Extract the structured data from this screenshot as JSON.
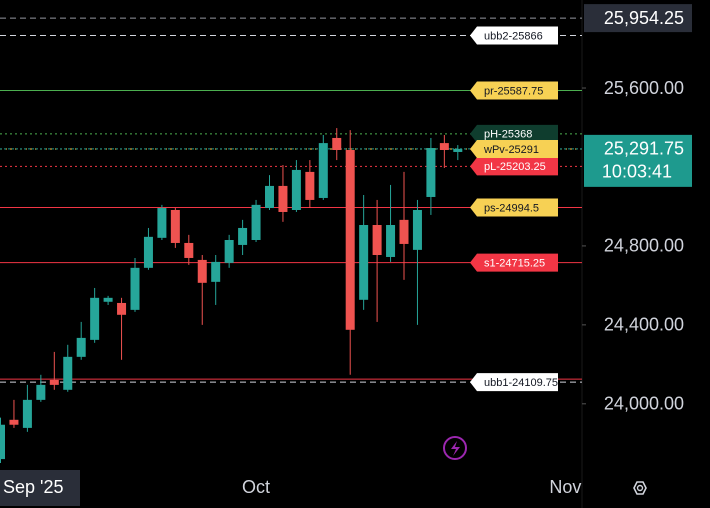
{
  "chart_data": {
    "type": "candlestick",
    "categories": [
      null,
      null,
      "Sep '25",
      null,
      null,
      null,
      null,
      null,
      null,
      null,
      null,
      null,
      null,
      null,
      null,
      null,
      null,
      null,
      null,
      "Oct",
      null,
      null,
      null,
      null,
      null,
      null,
      null,
      null,
      null,
      null,
      null,
      null,
      null,
      null,
      null,
      null,
      null,
      null,
      null,
      null,
      null,
      null,
      "Nov"
    ],
    "open": [
      23720,
      23919,
      23878,
      24020,
      24121,
      24071,
      24238,
      24324,
      24517,
      24511,
      24476,
      24689,
      24841,
      24982,
      24815,
      24729,
      24618,
      24714,
      24805,
      24830,
      24992,
      25104,
      24982,
      25175,
      25043,
      25347,
      25286,
      24527,
      24906,
      24744,
      24932,
      24780,
      25048,
      25321,
      25276,
      null,
      null,
      null,
      null,
      null,
      null,
      null,
      null
    ],
    "high": [
      23930,
      24020,
      24096,
      24147,
      24263,
      24299,
      24415,
      24587,
      24547,
      24537,
      24739,
      24891,
      25008,
      24992,
      24856,
      24754,
      24754,
      24856,
      24932,
      25033,
      25159,
      25210,
      25235,
      25235,
      25362,
      25397,
      25387,
      25058,
      25033,
      25109,
      25175,
      25033,
      25347,
      25362,
      25311,
      null,
      null,
      null,
      null,
      null,
      null,
      null,
      null
    ],
    "low": [
      23700,
      23878,
      23858,
      24010,
      24071,
      24061,
      24223,
      24309,
      24501,
      24223,
      24466,
      24679,
      24830,
      24790,
      24704,
      24400,
      24501,
      24689,
      24754,
      24820,
      24982,
      24922,
      24972,
      24992,
      25033,
      25235,
      24147,
      24476,
      24415,
      24719,
      24628,
      24400,
      24957,
      25195,
      25235,
      null,
      null,
      null,
      null,
      null,
      null,
      null,
      null
    ],
    "close": [
      23894,
      23894,
      24020,
      24096,
      24096,
      24238,
      24334,
      24537,
      24537,
      24451,
      24689,
      24846,
      24992,
      24815,
      24739,
      24613,
      24719,
      24830,
      24891,
      25008,
      25104,
      24972,
      25185,
      25033,
      25321,
      25286,
      24375,
      24906,
      24754,
      24906,
      24810,
      24982,
      25296,
      25286,
      25291.75,
      null,
      null,
      null,
      null,
      null,
      null,
      null,
      null
    ],
    "up_color": "#26a69a",
    "down_color": "#ef5350",
    "ylim": [
      23690,
      26046
    ],
    "yticks": [
      {
        "value": 24000,
        "label": "24,000.00"
      },
      {
        "value": 24400,
        "label": "24,400.00"
      },
      {
        "value": 24800,
        "label": "24,800.00"
      },
      {
        "value": 25600,
        "label": "25,600.00"
      }
    ],
    "levels": [
      {
        "label": "ubb2-25866",
        "value": 25866,
        "line_color": "#d1d4dc",
        "style": "dashed",
        "box_color": "#ffffff",
        "text_color": "#131722"
      },
      {
        "label": "pr-25587.75",
        "value": 25587.75,
        "line_color": "#4caf50",
        "style": "solid",
        "box_color": "#f7d154",
        "text_color": "#131722"
      },
      {
        "value": 24125,
        "line_color": "#f23645",
        "style": "solid"
      },
      {
        "label": "ubb1-24109.75",
        "value": 24109.75,
        "line_color": "#d1d4dc",
        "style": "dashed",
        "box_color": "#ffffff",
        "text_color": "#131722"
      },
      {
        "label": "s1-24715.25",
        "value": 24715.25,
        "line_color": "#f23645",
        "style": "solid",
        "box_color": "#f23645",
        "text_color": "#ffffff"
      },
      {
        "label": "ps-24994.5",
        "value": 24994.5,
        "line_color": "#f23645",
        "style": "solid",
        "box_color": "#f7d154",
        "text_color": "#131722"
      },
      {
        "label": "pH-25368",
        "value": 25368,
        "line_color": "#4caf50",
        "style": "dotted",
        "box_color": "#0f3d2e",
        "text_color": "#ffffff"
      },
      {
        "label": "pL-25203.25",
        "value": 25203.25,
        "line_color": "#f23645",
        "style": "dotted",
        "box_color": "#f23645",
        "text_color": "#ffffff"
      },
      {
        "label": "wPv-25291",
        "value": 25291,
        "line_color": "#f7d154",
        "style": "dotted",
        "box_color": "#f7d154",
        "text_color": "#131722"
      }
    ],
    "price_marker": {
      "value": 25954.25,
      "label": "25,954.25"
    },
    "last_price": {
      "value": 25291.75,
      "label": "25,291.75",
      "countdown": "10:03:41",
      "color": "#1e9a8e"
    }
  }
}
